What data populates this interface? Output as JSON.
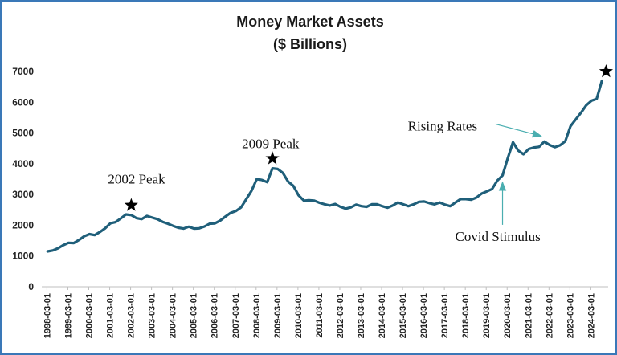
{
  "chart_data": {
    "type": "line",
    "title": "Money Market Assets",
    "subtitle": "($ Billions)",
    "xlabel": "",
    "ylabel": "",
    "ylim": [
      0,
      7000
    ],
    "yticks": [
      0,
      1000,
      2000,
      3000,
      4000,
      5000,
      6000,
      7000
    ],
    "grid": false,
    "legend": "none",
    "series_color": "#1f5f7a",
    "xticks": [
      "1998-03-01",
      "1999-03-01",
      "2000-03-01",
      "2001-03-01",
      "2002-03-01",
      "2003-03-01",
      "2004-03-01",
      "2005-03-01",
      "2006-03-01",
      "2007-03-01",
      "2008-03-01",
      "2009-03-01",
      "2010-03-01",
      "2011-03-01",
      "2012-03-01",
      "2013-03-01",
      "2014-03-01",
      "2015-03-01",
      "2016-03-01",
      "2017-03-01",
      "2018-03-01",
      "2019-03-01",
      "2020-03-01",
      "2021-03-01",
      "2022-03-01",
      "2023-03-01",
      "2024-03-01"
    ],
    "series": [
      {
        "name": "Money Market Assets",
        "x": [
          1998.2,
          1998.45,
          1998.7,
          1998.95,
          1999.2,
          1999.45,
          1999.7,
          1999.95,
          2000.2,
          2000.45,
          2000.7,
          2000.95,
          2001.2,
          2001.45,
          2001.7,
          2001.95,
          2002.2,
          2002.45,
          2002.7,
          2002.95,
          2003.2,
          2003.45,
          2003.7,
          2003.95,
          2004.2,
          2004.45,
          2004.7,
          2004.95,
          2005.2,
          2005.45,
          2005.7,
          2005.95,
          2006.2,
          2006.45,
          2006.7,
          2006.95,
          2007.2,
          2007.45,
          2007.7,
          2007.95,
          2008.2,
          2008.45,
          2008.7,
          2008.95,
          2009.2,
          2009.45,
          2009.7,
          2009.95,
          2010.2,
          2010.45,
          2010.7,
          2010.95,
          2011.2,
          2011.45,
          2011.7,
          2011.95,
          2012.2,
          2012.45,
          2012.7,
          2012.95,
          2013.2,
          2013.45,
          2013.7,
          2013.95,
          2014.2,
          2014.45,
          2014.7,
          2014.95,
          2015.2,
          2015.45,
          2015.7,
          2015.95,
          2016.2,
          2016.45,
          2016.7,
          2016.95,
          2017.2,
          2017.45,
          2017.7,
          2017.95,
          2018.2,
          2018.45,
          2018.7,
          2018.95,
          2019.2,
          2019.45,
          2019.7,
          2019.95,
          2020.2,
          2020.45,
          2020.7,
          2020.95,
          2021.2,
          2021.45,
          2021.7,
          2021.95,
          2022.2,
          2022.45,
          2022.7,
          2022.95,
          2023.2,
          2023.45,
          2023.7,
          2023.95,
          2024.2,
          2024.45,
          2024.7
        ],
        "values": [
          1150,
          1180,
          1250,
          1350,
          1430,
          1420,
          1520,
          1640,
          1710,
          1680,
          1780,
          1900,
          2060,
          2100,
          2220,
          2350,
          2330,
          2230,
          2200,
          2300,
          2250,
          2200,
          2110,
          2050,
          1980,
          1920,
          1890,
          1950,
          1890,
          1900,
          1960,
          2050,
          2060,
          2150,
          2280,
          2400,
          2460,
          2580,
          2850,
          3120,
          3500,
          3470,
          3400,
          3850,
          3830,
          3700,
          3420,
          3280,
          2970,
          2800,
          2810,
          2800,
          2730,
          2680,
          2640,
          2690,
          2600,
          2540,
          2580,
          2670,
          2620,
          2600,
          2680,
          2680,
          2620,
          2570,
          2640,
          2740,
          2680,
          2620,
          2680,
          2760,
          2770,
          2720,
          2680,
          2740,
          2670,
          2620,
          2740,
          2850,
          2850,
          2830,
          2900,
          3030,
          3100,
          3180,
          3450,
          3620,
          4180,
          4700,
          4430,
          4310,
          4480,
          4530,
          4550,
          4720,
          4610,
          4540,
          4600,
          4730,
          5220,
          5440,
          5660,
          5900,
          6050,
          6110,
          6700
        ]
      }
    ],
    "annotations": [
      {
        "text": "2002 Peak",
        "marker": "star",
        "at_x": 2002.2,
        "at_y": 2650
      },
      {
        "text": "2009 Peak",
        "marker": "star",
        "at_x": 2008.95,
        "at_y": 4170
      },
      {
        "text": "Rising Rates",
        "marker": "arrow",
        "at_x": 2021.8,
        "at_y": 4900
      },
      {
        "text": "Covid Stimulus",
        "marker": "arrow",
        "at_x": 2019.95,
        "at_y": 3450
      },
      {
        "text": "",
        "marker": "star",
        "at_x": 2024.9,
        "at_y": 7000
      }
    ]
  }
}
